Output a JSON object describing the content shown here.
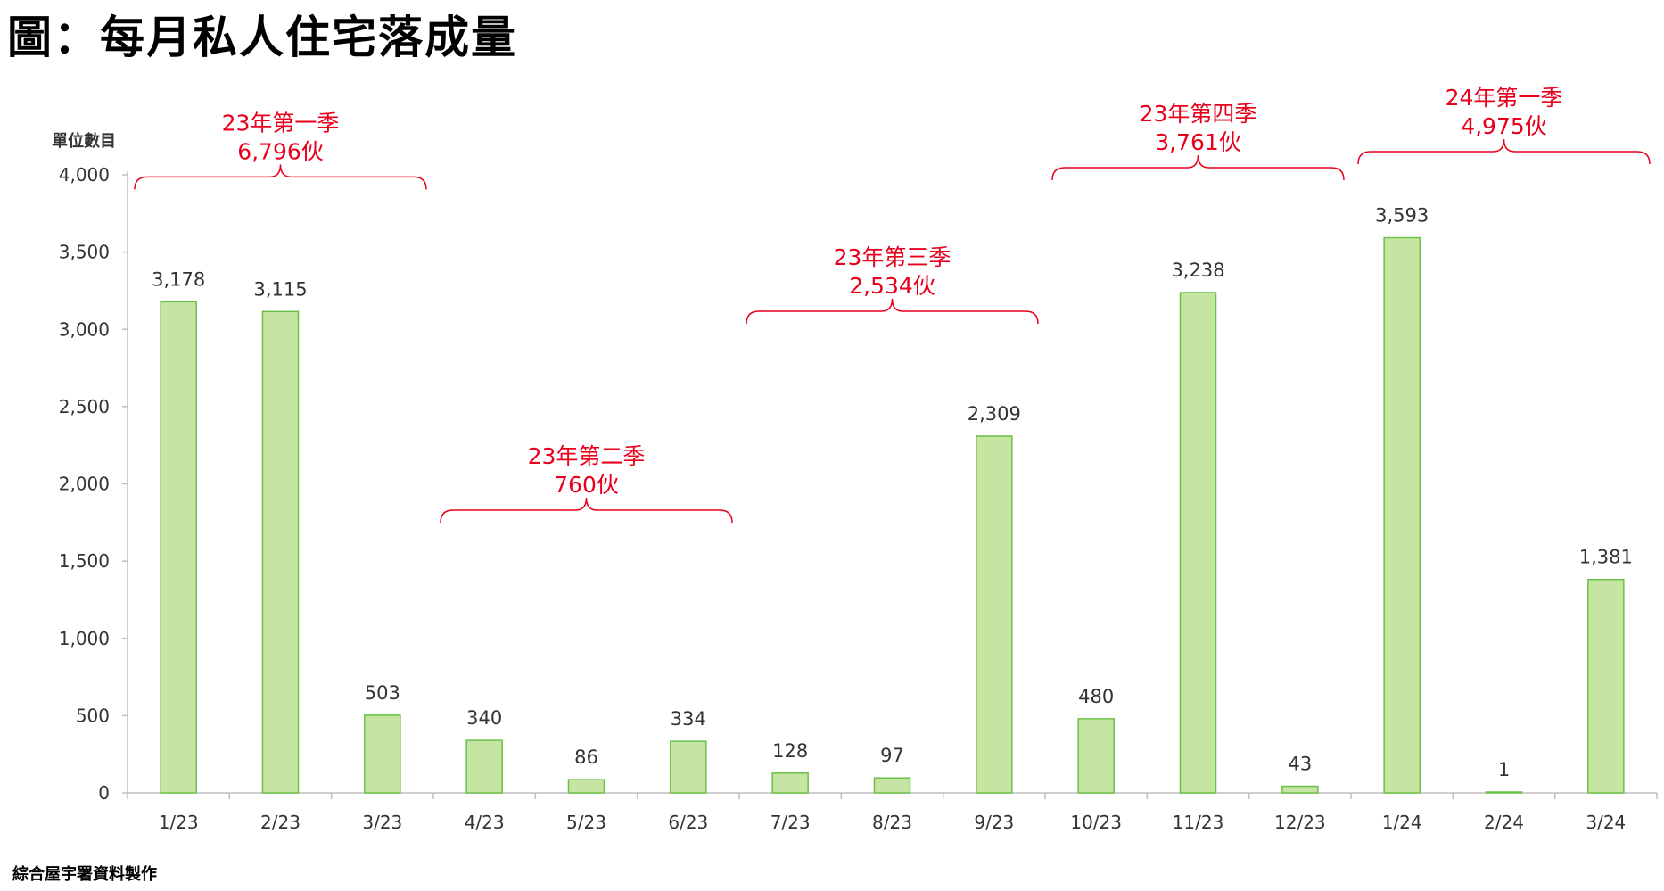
{
  "chart_data": {
    "type": "bar",
    "title": "圖：每月私人住宅落成量",
    "ylabel": "單位數目",
    "xlabel": "",
    "ylim": [
      0,
      4000
    ],
    "yticks": [
      0,
      500,
      1000,
      1500,
      2000,
      2500,
      3000,
      3500,
      4000
    ],
    "ytick_labels": [
      "0",
      "500",
      "1,000",
      "1,500",
      "2,000",
      "2,500",
      "3,000",
      "3,500",
      "4,000"
    ],
    "categories": [
      "1/23",
      "2/23",
      "3/23",
      "4/23",
      "5/23",
      "6/23",
      "7/23",
      "8/23",
      "9/23",
      "10/23",
      "11/23",
      "12/23",
      "1/24",
      "2/24",
      "3/24"
    ],
    "values": [
      3178,
      3115,
      503,
      340,
      86,
      334,
      128,
      97,
      2309,
      480,
      3238,
      43,
      3593,
      1,
      1381
    ],
    "value_labels": [
      "3,178",
      "3,115",
      "503",
      "340",
      "86",
      "334",
      "128",
      "97",
      "2,309",
      "480",
      "3,238",
      "43",
      "3,593",
      "1",
      "1,381"
    ],
    "bar_color": "#c6e5a2",
    "bar_edge_color": "#6cc04a",
    "grid": false,
    "annotations": [
      {
        "line1": "23年第一季",
        "line2": "6,796伙",
        "start": 0,
        "end": 2
      },
      {
        "line1": "23年第二季",
        "line2": "760伙",
        "start": 3,
        "end": 5
      },
      {
        "line1": "23年第三季",
        "line2": "2,534伙",
        "start": 6,
        "end": 8
      },
      {
        "line1": "23年第四季",
        "line2": "3,761伙",
        "start": 9,
        "end": 11
      },
      {
        "line1": "24年第一季",
        "line2": "4,975伙",
        "start": 12,
        "end": 14
      }
    ],
    "annotation_color": "#e8001c"
  },
  "source": "綜合屋宇署資料製作"
}
